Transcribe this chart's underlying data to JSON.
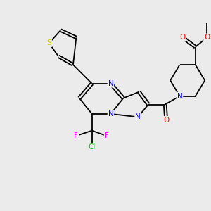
{
  "background_color": "#ebebeb",
  "bond_color": "#000000",
  "atom_colors": {
    "N": "#0000ff",
    "O": "#ff0000",
    "S": "#cccc00",
    "F": "#ff00ff",
    "Cl": "#00cc00",
    "C": "#000000"
  },
  "font_size": 7.5,
  "bond_width": 1.3,
  "dbl_off": 0.07
}
